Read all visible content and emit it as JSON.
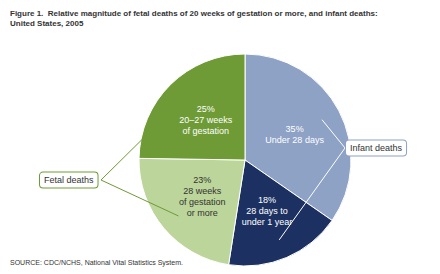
{
  "chart_data": {
    "type": "pie",
    "title": "Figure 1.  Relative magnitude of fetal deaths of 20 weeks of gestation or more, and infant deaths:\nUnited States, 2005",
    "categories": [
      "Under 28 days",
      "28 days to\nunder 1 year",
      "28 weeks\nof gestation\nor more",
      "20–27 weeks\nof gestation"
    ],
    "values": [
      35,
      18,
      23,
      25
    ],
    "value_labels": [
      "35%",
      "18%",
      "23%",
      "25%"
    ],
    "colors": [
      "#8ea2c6",
      "#1c3162",
      "#bcd59a",
      "#6e9b35"
    ],
    "data_labels": true,
    "annotations": [
      {
        "text": "Fetal deaths",
        "slices": [
          "28 weeks\nof gestation\nor more",
          "20–27 weeks\nof gestation"
        ]
      },
      {
        "text": "Infant deaths",
        "slices": [
          "Under 28 days",
          "28 days to\nunder 1 year"
        ]
      }
    ],
    "source": "SOURCE: CDC/NCHS, National Vital Statistics System."
  }
}
